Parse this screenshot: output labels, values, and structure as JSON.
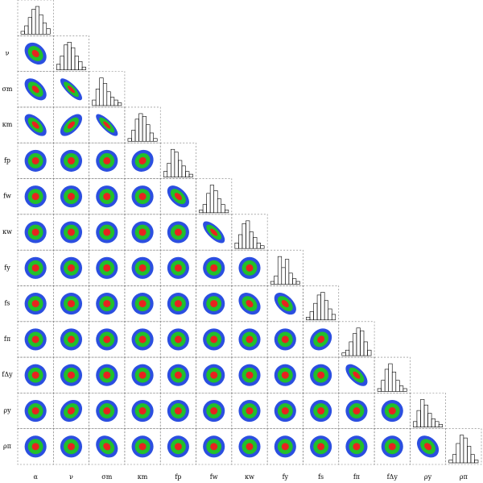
{
  "chart_data": {
    "type": "corner",
    "parameters": [
      "α",
      "ν",
      "σm",
      "κm",
      "fp",
      "fw",
      "κw",
      "fy",
      "fs",
      "fπ",
      "fΔy",
      "ρy",
      "ρπ"
    ],
    "level_colors": [
      "#2b4fe0",
      "#22c02a",
      "#e8231f"
    ],
    "histograms": [
      [
        1,
        3,
        6,
        9,
        10,
        7,
        4,
        2
      ],
      [
        2,
        5,
        9,
        10,
        8,
        5,
        3,
        1
      ],
      [
        2,
        6,
        10,
        8,
        5,
        3,
        2,
        1
      ],
      [
        1,
        4,
        8,
        10,
        9,
        6,
        3,
        1
      ],
      [
        2,
        5,
        10,
        9,
        6,
        4,
        2,
        1
      ],
      [
        1,
        3,
        7,
        10,
        8,
        5,
        3,
        1
      ],
      [
        2,
        5,
        9,
        10,
        6,
        4,
        2,
        1
      ],
      [
        1,
        3,
        10,
        6,
        9,
        4,
        2,
        1
      ],
      [
        1,
        3,
        6,
        9,
        10,
        7,
        4,
        2
      ],
      [
        1,
        2,
        5,
        8,
        10,
        9,
        5,
        2
      ],
      [
        1,
        4,
        8,
        10,
        7,
        4,
        2,
        1
      ],
      [
        2,
        6,
        10,
        8,
        5,
        3,
        2,
        1
      ],
      [
        1,
        3,
        7,
        10,
        9,
        6,
        3,
        1
      ]
    ],
    "correlations": [
      -0.3,
      -0.5,
      -0.8,
      -0.6,
      0.6,
      -0.8,
      0.0,
      0.0,
      0.0,
      0.1,
      0.0,
      0.0,
      0.0,
      0.0,
      -0.5,
      0.0,
      0.0,
      0.0,
      0.0,
      0.0,
      -0.7,
      0.0,
      0.0,
      0.0,
      0.0,
      0.0,
      0.0,
      0.0,
      0.0,
      0.0,
      0.0,
      0.0,
      0.0,
      0.0,
      -0.3,
      -0.5,
      0.0,
      0.0,
      0.0,
      0.0,
      0.0,
      0.0,
      0.0,
      0.0,
      0.2,
      0.0,
      0.0,
      0.0,
      0.0,
      0.0,
      0.0,
      0.0,
      0.0,
      0.0,
      -0.6,
      0.0,
      0.2,
      0.0,
      0.0,
      0.0,
      0.0,
      0.0,
      0.0,
      0.0,
      0.0,
      0.0,
      0.0,
      0.0,
      -0.2,
      0.0,
      0.0,
      0.0,
      0.0,
      0.0,
      0.0,
      0.0,
      0.0,
      -0.3
    ]
  }
}
